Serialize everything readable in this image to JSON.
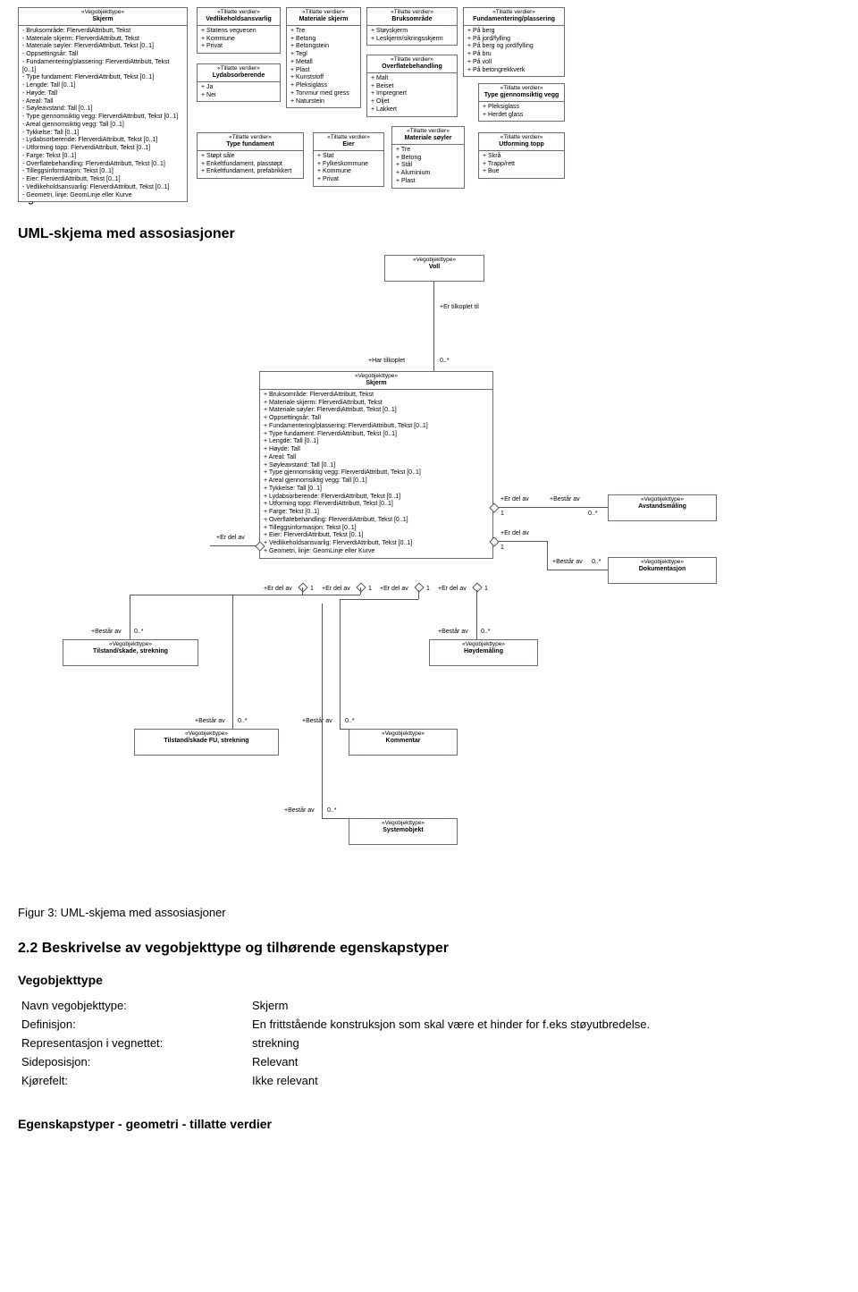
{
  "figure2": {
    "caption": "Figur 2: Tillatte verdier",
    "boxes": {
      "skjerm": {
        "stereo": "«Vegobjekttype»",
        "title": "Skjerm",
        "bullet": "dash",
        "items": [
          "Bruksområde: FlerverdiAttributt, Tekst",
          "Materiale skjerm: FlerverdiAttributt, Tekst",
          "Materiale søyler: FlerverdiAttributt, Tekst [0..1]",
          "Oppsettingsår: Tall",
          "Fundamentering/plassering: FlerverdiAttributt, Tekst [0..1]",
          "Type fundament: FlerverdiAttributt, Tekst [0..1]",
          "Lengde: Tall [0..1]",
          "Høyde: Tall",
          "Areal: Tall",
          "Søyleavstand: Tall [0..1]",
          "Type gjennomsiktig vegg: FlerverdiAttributt, Tekst [0..1]",
          "Areal gjennomsiktig vegg: Tall [0..1]",
          "Tykkelse: Tall [0..1]",
          "Lydabsorberende: FlerverdiAttributt, Tekst [0..1]",
          "Utforming topp: FlerverdiAttributt, Tekst [0..1]",
          "Farge: Tekst [0..1]",
          "Overflatebehandling: FlerverdiAttributt, Tekst [0..1]",
          "Tilleggsinformasjon: Tekst [0..1]",
          "Eier: FlerverdiAttributt, Tekst [0..1]",
          "Vedlikeholdsansvarlig: FlerverdiAttributt, Tekst [0..1]",
          "Geometri, linje: GeomLinje eller Kurve"
        ]
      },
      "vedlikehold": {
        "stereo": "«Tillatte verdier»",
        "title": "Vedlikeholdsansvarlig",
        "items": [
          "Statens vegvesen",
          "Kommune",
          "Privat"
        ]
      },
      "lydabs": {
        "stereo": "«Tillatte verdier»",
        "title": "Lydabsorberende",
        "items": [
          "Ja",
          "Nei"
        ]
      },
      "typefund": {
        "stereo": "«Tillatte verdier»",
        "title": "Type fundament",
        "items": [
          "Støpt såle",
          "Enkeltfundament, plasstøpt",
          "Enkeltfundament, prefabrikkert"
        ]
      },
      "matskjerm": {
        "stereo": "«Tillatte verdier»",
        "title": "Materiale skjerm",
        "items": [
          "Tre",
          "Betong",
          "Betongstein",
          "Tegl",
          "Metall",
          "Plast",
          "Kunststoff",
          "Pleksiglass",
          "Torvmur med gress",
          "Naturstein"
        ]
      },
      "eier": {
        "stereo": "«Tillatte verdier»",
        "title": "Eier",
        "items": [
          "Stat",
          "Fylkeskommune",
          "Kommune",
          "Privat"
        ]
      },
      "bruks": {
        "stereo": "«Tillatte verdier»",
        "title": "Bruksområde",
        "items": [
          "Støyskjerm",
          "Leskjerm/sikringsskjerm"
        ]
      },
      "overflate": {
        "stereo": "«Tillatte verdier»",
        "title": "Overflatebehandling",
        "items": [
          "Malt",
          "Beiset",
          "Impregnert",
          "Oljet",
          "Lakkert"
        ]
      },
      "matsoyler": {
        "stereo": "«Tillatte verdier»",
        "title": "Materiale søyler",
        "items": [
          "Tre",
          "Betong",
          "Stål",
          "Aluminium",
          "Plast"
        ]
      },
      "fundplass": {
        "stereo": "«Tillatte verdier»",
        "title": "Fundamentering/plassering",
        "items": [
          "På berg",
          "På jord/fylling",
          "På berg og jord/fylling",
          "På bru",
          "På voll",
          "På betongrekkverk"
        ]
      },
      "typegjennom": {
        "stereo": "«Tillatte verdier»",
        "title": "Type gjennomsiktig vegg",
        "items": [
          "Pleksiglass",
          "Herdet glass"
        ]
      },
      "utformtopp": {
        "stereo": "«Tillatte verdier»",
        "title": "Utforming topp",
        "items": [
          "Skrå",
          "Trapp/rett",
          "Bue"
        ]
      }
    }
  },
  "umlHeading": "UML-skjema med assosiasjoner",
  "figure3": {
    "caption": "Figur 3: UML-skjema med assosiasjoner",
    "voll": {
      "stereo": "«Vegobjekttype»",
      "title": "Voll"
    },
    "skjerm": {
      "stereo": "«Vegobjekttype»",
      "title": "Skjerm",
      "items": [
        "Bruksområde: FlerverdiAttributt, Tekst",
        "Materiale skjerm: FlerverdiAttributt, Tekst",
        "Materiale søyler: FlerverdiAttributt, Tekst [0..1]",
        "Oppsettingsår: Tall",
        "Fundamentering/plassering: FlerverdiAttributt, Tekst [0..1]",
        "Type fundament: FlerverdiAttributt, Tekst [0..1]",
        "Lengde: Tall [0..1]",
        "Høyde: Tall",
        "Areal: Tall",
        "Søyleavstand: Tall [0..1]",
        "Type gjennomsiktig vegg: FlerverdiAttributt, Tekst [0..1]",
        "Areal gjennomsiktig vegg: Tall [0..1]",
        "Tykkelse: Tall [0..1]",
        "Lydabsorberende: FlerverdiAttributt, Tekst [0..1]",
        "Utforming topp: FlerverdiAttributt, Tekst [0..1]",
        "Farge: Tekst [0..1]",
        "Overflatebehandling: FlerverdiAttributt, Tekst [0..1]",
        "Tilleggsinformasjon: Tekst [0..1]",
        "Eier: FlerverdiAttributt, Tekst [0..1]",
        "Vedlikeholdsansvarlig: FlerverdiAttributt, Tekst [0..1]",
        "Geometri, linje: GeomLinje eller Kurve"
      ]
    },
    "avstand": {
      "stereo": "«Vegobjekttype»",
      "title": "Avstandsmåling"
    },
    "dokum": {
      "stereo": "«Vegobjekttype»",
      "title": "Dokumentasjon"
    },
    "tilstand": {
      "stereo": "«Vegobjekttype»",
      "title": "Tilstand/skade, strekning"
    },
    "hoyde": {
      "stereo": "«Vegobjekttype»",
      "title": "Høydemåling"
    },
    "tilstandfu": {
      "stereo": "«Vegobjekttype»",
      "title": "Tilstand/skade FU, strekning"
    },
    "kommentar": {
      "stereo": "«Vegobjekttype»",
      "title": "Kommentar"
    },
    "systemobj": {
      "stereo": "«Vegobjekttype»",
      "title": "Systemobjekt"
    },
    "labels": {
      "erTilkoplet": "+Er tilkoplet til",
      "harTilkoplet": "+Har tilkoplet",
      "erDelAv": "+Er del av",
      "bestarAv": "+Består av",
      "m0s": "0..*",
      "m1": "1"
    }
  },
  "section22": {
    "heading": "2.2 Beskrivelse av vegobjekttype og tilhørende egenskapstyper",
    "sub1": "Vegobjekttype",
    "rows": [
      [
        "Navn vegobjekttype:",
        "Skjerm"
      ],
      [
        "Definisjon:",
        "En frittstående konstruksjon som skal være et hinder for f.eks støyutbredelse."
      ],
      [
        "Representasjon i vegnettet:",
        "strekning"
      ],
      [
        "Sideposisjon:",
        "Relevant"
      ],
      [
        "Kjørefelt:",
        "Ikke relevant"
      ]
    ],
    "sub2": "Egenskapstyper - geometri - tillatte verdier"
  }
}
